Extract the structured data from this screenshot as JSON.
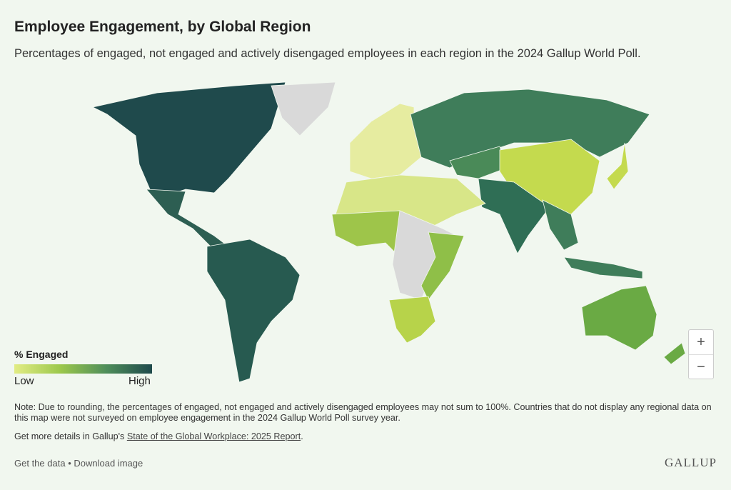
{
  "header": {
    "title": "Employee Engagement, by Global Region",
    "subtitle": "Percentages of engaged, not engaged and actively disengaged employees in each region in the 2024 Gallup World Poll."
  },
  "legend": {
    "title": "% Engaged",
    "low": "Low",
    "high": "High"
  },
  "zoom": {
    "in": "+",
    "out": "−"
  },
  "note": "Note: Due to rounding, the percentages of engaged, not engaged and actively disengaged employees may not sum to 100%. Countries that do not display any regional data on this map were not surveyed on employee engagement in the 2024 Gallup World Poll survey year.",
  "details": {
    "prefix": "Get more details in Gallup's",
    "link": "State of the Global Workplace: 2025 Report",
    "suffix": "."
  },
  "footer": {
    "get_data": "Get the data",
    "separator": "•",
    "download": "Download image",
    "logo": "GALLUP"
  }
}
